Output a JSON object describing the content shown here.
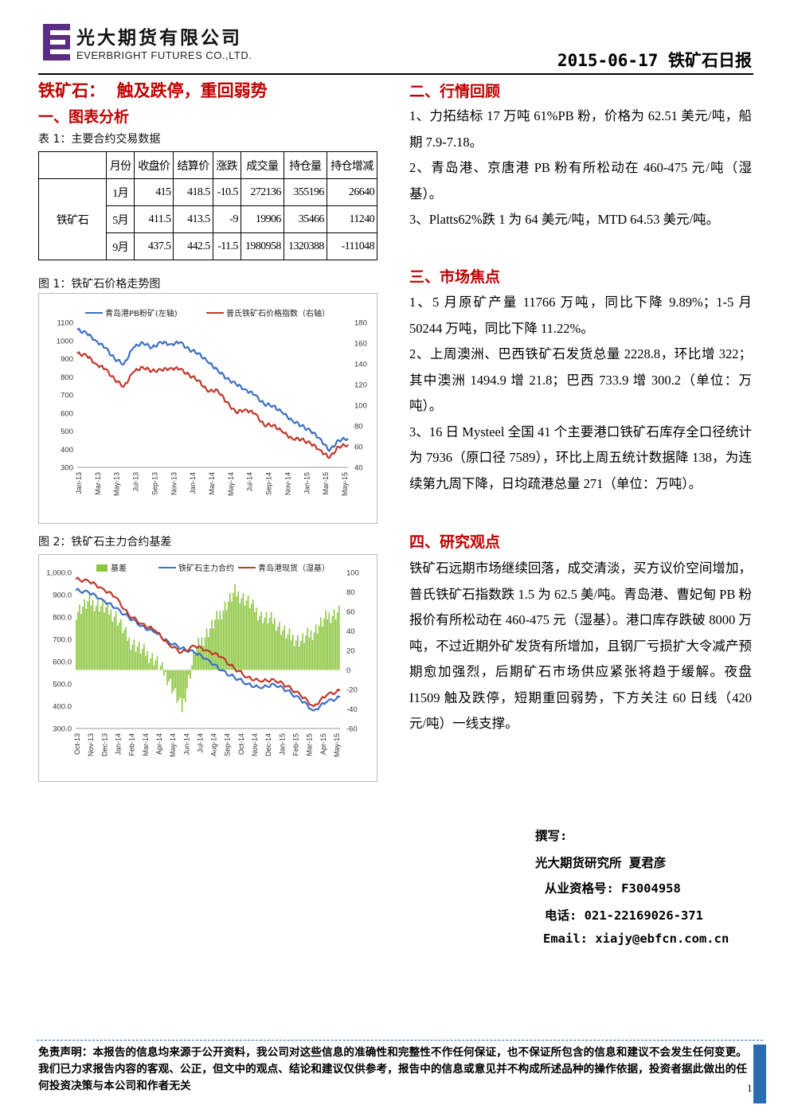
{
  "header": {
    "company_cn": "光大期货有限公司",
    "company_en": "EVERBRIGHT FUTURES CO.,LTD.",
    "report_title": "2015-06-17 铁矿石日报",
    "brand_color": "#5a2d82"
  },
  "left": {
    "main_title": "铁矿石：  触及跌停，重回弱势",
    "section1": "一、图表分析",
    "table_caption": "表 1：主要合约交易数据",
    "table": {
      "headers": [
        "",
        "月份",
        "收盘价",
        "结算价",
        "涨跌",
        "成交量",
        "持仓量",
        "持仓增减"
      ],
      "commodity": "铁矿石",
      "rows": [
        [
          "1月",
          "415",
          "418.5",
          "-10.5",
          "272136",
          "355196",
          "26640"
        ],
        [
          "5月",
          "411.5",
          "413.5",
          "-9",
          "19906",
          "35466",
          "11240"
        ],
        [
          "9月",
          "437.5",
          "442.5",
          "-11.5",
          "1980958",
          "1320388",
          "-111048"
        ]
      ]
    },
    "fig1_caption": "图 1：铁矿石价格走势图",
    "fig2_caption": "图 2：铁矿石主力合约基差"
  },
  "chart_data": [
    {
      "type": "line",
      "series": [
        {
          "name": "青岛港PB粉矿(左轴)",
          "axis": "left",
          "color": "#3d6fc4",
          "x": [
            "2013-01",
            "2013-02",
            "2013-03",
            "2013-04",
            "2013-05",
            "2013-06",
            "2013-07",
            "2013-08",
            "2013-09",
            "2013-10",
            "2013-11",
            "2013-12",
            "2014-01",
            "2014-02",
            "2014-03",
            "2014-04",
            "2014-05",
            "2014-06",
            "2014-07",
            "2014-08",
            "2014-09",
            "2014-10",
            "2014-11",
            "2014-12",
            "2015-01",
            "2015-02",
            "2015-03",
            "2015-04",
            "2015-05",
            "2015-06"
          ],
          "values": [
            1060,
            1040,
            1000,
            960,
            900,
            870,
            960,
            990,
            960,
            990,
            980,
            990,
            950,
            930,
            880,
            840,
            790,
            760,
            730,
            700,
            650,
            640,
            600,
            560,
            530,
            500,
            460,
            390,
            450,
            460
          ]
        },
        {
          "name": "普氏铁矿石价格指数（右轴）",
          "axis": "right",
          "color": "#c0392b",
          "x": [
            "2013-01",
            "2013-02",
            "2013-03",
            "2013-04",
            "2013-05",
            "2013-06",
            "2013-07",
            "2013-08",
            "2013-09",
            "2013-10",
            "2013-11",
            "2013-12",
            "2014-01",
            "2014-02",
            "2014-03",
            "2014-04",
            "2014-05",
            "2014-06",
            "2014-07",
            "2014-08",
            "2014-09",
            "2014-10",
            "2014-11",
            "2014-12",
            "2015-01",
            "2015-02",
            "2015-03",
            "2015-04",
            "2015-05",
            "2015-06"
          ],
          "values": [
            150,
            148,
            140,
            135,
            125,
            118,
            132,
            137,
            133,
            134,
            136,
            135,
            129,
            124,
            113,
            115,
            103,
            93,
            96,
            92,
            81,
            81,
            74,
            68,
            67,
            63,
            57,
            49,
            60,
            62
          ]
        }
      ],
      "x_ticks": [
        "Jan-13",
        "Mar-13",
        "May-13",
        "Jul-13",
        "Sep-13",
        "Nov-13",
        "Jan-14",
        "Mar-14",
        "May-14",
        "Jul-14",
        "Sep-14",
        "Nov-14",
        "Jan-15",
        "Mar-15",
        "May-15"
      ],
      "ylim_left": [
        300,
        1100
      ],
      "yticks_left": [
        "300",
        "400",
        "500",
        "600",
        "700",
        "800",
        "900",
        "1000",
        "1100"
      ],
      "ylim_right": [
        40,
        180
      ],
      "yticks_right": [
        "40",
        "60",
        "80",
        "100",
        "120",
        "140",
        "160",
        "180"
      ],
      "grid": false,
      "legend": "top"
    },
    {
      "type": "bar+line",
      "series": [
        {
          "name": "基差",
          "kind": "bar",
          "axis": "right",
          "color": "#8cc63f",
          "x": [
            "2013-10",
            "2013-11",
            "2013-12",
            "2014-01",
            "2014-02",
            "2014-03",
            "2014-04",
            "2014-05",
            "2014-06",
            "2014-07",
            "2014-08",
            "2014-09",
            "2014-10",
            "2014-11",
            "2014-12",
            "2015-01",
            "2015-02",
            "2015-03",
            "2015-04",
            "2015-05",
            "2015-06"
          ],
          "values": [
            60,
            70,
            65,
            55,
            30,
            20,
            10,
            -10,
            -40,
            20,
            40,
            60,
            80,
            70,
            55,
            50,
            35,
            30,
            40,
            55,
            60
          ]
        },
        {
          "name": "铁矿石主力合约",
          "kind": "line",
          "axis": "left",
          "color": "#3d6fc4",
          "x": [
            "2013-10",
            "2013-11",
            "2013-12",
            "2014-01",
            "2014-02",
            "2014-03",
            "2014-04",
            "2014-05",
            "2014-06",
            "2014-07",
            "2014-08",
            "2014-09",
            "2014-10",
            "2014-11",
            "2014-12",
            "2015-01",
            "2015-02",
            "2015-03",
            "2015-04",
            "2015-05",
            "2015-06"
          ],
          "values": [
            920,
            910,
            880,
            840,
            800,
            760,
            730,
            690,
            660,
            640,
            610,
            560,
            530,
            500,
            480,
            500,
            470,
            430,
            380,
            420,
            440
          ]
        },
        {
          "name": "青岛港现货（湿基）",
          "kind": "line",
          "axis": "left",
          "color": "#c0392b",
          "x": [
            "2013-10",
            "2013-11",
            "2013-12",
            "2014-01",
            "2014-02",
            "2014-03",
            "2014-04",
            "2014-05",
            "2014-06",
            "2014-07",
            "2014-08",
            "2014-09",
            "2014-10",
            "2014-11",
            "2014-12",
            "2015-01",
            "2015-02",
            "2015-03",
            "2015-04",
            "2015-05",
            "2015-06"
          ],
          "values": [
            970,
            960,
            930,
            890,
            810,
            770,
            740,
            680,
            640,
            670,
            650,
            620,
            570,
            530,
            510,
            520,
            490,
            450,
            400,
            450,
            470
          ]
        }
      ],
      "x_ticks": [
        "Oct-13",
        "Nov-13",
        "Dec-13",
        "Jan-14",
        "Feb-14",
        "Mar-14",
        "Apr-14",
        "May-14",
        "Jun-14",
        "Jul-14",
        "Aug-14",
        "Sep-14",
        "Oct-14",
        "Nov-14",
        "Dec-14",
        "Jan-15",
        "Feb-15",
        "Mar-15",
        "Apr-15",
        "May-15"
      ],
      "ylim_left": [
        300,
        1000
      ],
      "yticks_left": [
        "300.0",
        "400.0",
        "500.0",
        "600.0",
        "700.0",
        "800.0",
        "900.0",
        "1,000.0"
      ],
      "ylim_right": [
        -60,
        100
      ],
      "yticks_right": [
        "-60",
        "-40",
        "-20",
        "0",
        "20",
        "40",
        "60",
        "80",
        "100"
      ],
      "grid": false,
      "legend": "top"
    }
  ],
  "right": {
    "section2": "二、行情回顾",
    "review": [
      "1、力拓结标 17 万吨 61%PB 粉，价格为 62.51 美元/吨，船期 7.9-7.18。",
      "2、青岛港、京唐港 PB 粉有所松动在 460-475 元/吨（湿基）。",
      "3、Platts62%跌 1 为 64 美元/吨，MTD 64.53 美元/吨。"
    ],
    "section3": "三、市场焦点",
    "focus": [
      "1、5 月原矿产量 11766 万吨，同比下降 9.89%；1-5 月 50244 万吨，同比下降 11.22%。",
      "2、上周澳洲、巴西铁矿石发货总量 2228.8，环比增 322；其中澳洲 1494.9 增 21.8；巴西 733.9 增 300.2（单位：万吨）。",
      "3、16 日 Mysteel 全国 41 个主要港口铁矿石库存全口径统计为 7936（原口径 7589），环比上周五统计数据降 138，为连续第九周下降，日均疏港总量 271（单位：万吨）。"
    ],
    "section4": "四、研究观点",
    "view": "铁矿石远期市场继续回落，成交清淡，买方议价空间增加，普氏铁矿石指数跌 1.5 为 62.5 美/吨。青岛港、曹妃甸 PB 粉报价有所松动在 460-475 元（湿基）。港口库存跌破 8000 万吨，不过近期外矿发货有所增加，且钢厂亏损扩大令减产预期愈加强烈，后期矿石市场供应紧张将趋于缓解。夜盘 I1509 触及跌停，短期重回弱势，下方关注 60 日线（420 元/吨）一线支撑。"
  },
  "author": {
    "label": "撰写:",
    "org": "光大期货研究所 夏君彦",
    "license": "从业资格号: F3004958",
    "phone": "电话: 021-22169026-371",
    "email": "Email: xiajy@ebfcn.com.cn"
  },
  "footer": {
    "disclaimer": "免责声明：本报告的信息均来源于公开资料，我公司对这些信息的准确性和完整性不作任何保证，也不保证所包含的信息和建议不会发生任何变更。我们已力求报告内容的客观、公正，但文中的观点、结论和建议仅供参考，报告中的信息或意见并不构成所述品种的操作依据，投资者据此做出的任何投资决策与本公司和作者无关",
    "page": "1"
  }
}
